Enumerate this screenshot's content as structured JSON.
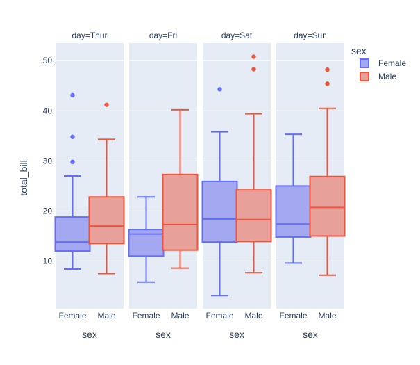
{
  "chart_data": {
    "type": "box",
    "title": "",
    "ylabel": "total_bill",
    "ylim": [
      0.5,
      53.5
    ],
    "yticks": [
      10,
      20,
      30,
      40,
      50
    ],
    "xlabel": "sex",
    "categories": [
      "Female",
      "Male"
    ],
    "facet_label": "day",
    "facets": [
      {
        "label": "day=Thur",
        "boxes": [
          {
            "name": "Female",
            "min": 8.4,
            "q1": 12.0,
            "median": 13.8,
            "q3": 18.8,
            "max": 27.0,
            "outliers": [
              29.8,
              34.8,
              43.1
            ]
          },
          {
            "name": "Male",
            "min": 7.5,
            "q1": 13.5,
            "median": 17.0,
            "q3": 22.8,
            "max": 34.3,
            "outliers": [
              41.2
            ]
          }
        ]
      },
      {
        "label": "day=Fri",
        "boxes": [
          {
            "name": "Female",
            "min": 5.8,
            "q1": 11.0,
            "median": 15.4,
            "q3": 16.3,
            "max": 22.8,
            "outliers": []
          },
          {
            "name": "Male",
            "min": 8.6,
            "q1": 12.2,
            "median": 17.3,
            "q3": 27.3,
            "max": 40.2,
            "outliers": []
          }
        ]
      },
      {
        "label": "day=Sat",
        "boxes": [
          {
            "name": "Female",
            "min": 3.1,
            "q1": 13.8,
            "median": 18.4,
            "q3": 25.9,
            "max": 35.8,
            "outliers": [
              44.3
            ]
          },
          {
            "name": "Male",
            "min": 7.7,
            "q1": 13.9,
            "median": 18.3,
            "q3": 24.2,
            "max": 39.4,
            "outliers": [
              48.3,
              50.8
            ]
          }
        ]
      },
      {
        "label": "day=Sun",
        "boxes": [
          {
            "name": "Female",
            "min": 9.6,
            "q1": 14.8,
            "median": 17.4,
            "q3": 25.0,
            "max": 35.3,
            "outliers": []
          },
          {
            "name": "Male",
            "min": 7.2,
            "q1": 15.0,
            "median": 20.7,
            "q3": 26.9,
            "max": 40.5,
            "outliers": [
              45.4,
              48.2
            ]
          }
        ]
      }
    ],
    "legend": {
      "title": "sex",
      "placement": "right",
      "items": [
        {
          "name": "Female",
          "color": "#636efa",
          "fill": "#a4a8f0"
        },
        {
          "name": "Male",
          "color": "#ef553b",
          "fill": "#e8a09a"
        }
      ]
    },
    "colors": {
      "panel_bg": "#e5ecf6",
      "grid": "#ffffff",
      "text": "#2a3f5f"
    }
  }
}
